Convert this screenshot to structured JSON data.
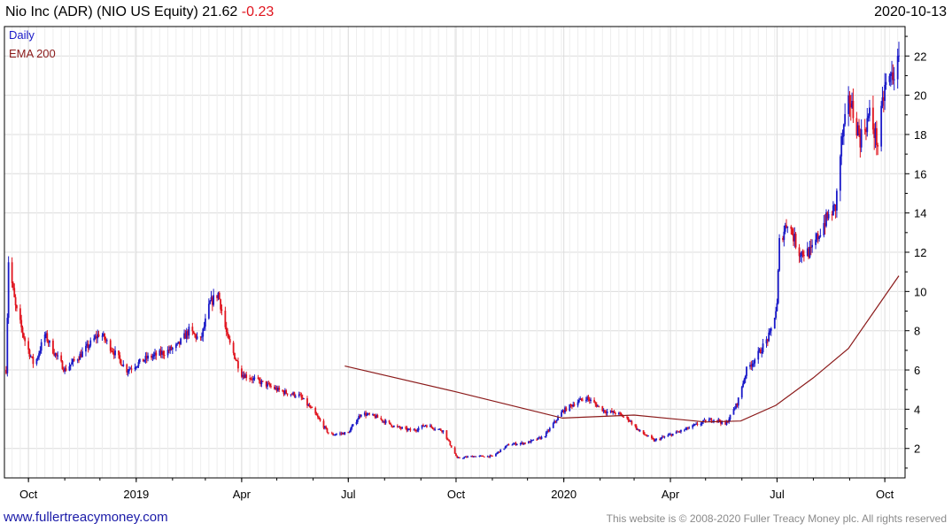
{
  "header": {
    "name": "Nio Inc (ADR)",
    "ticker": "(NIO US Equity)",
    "last": "21.62",
    "change": "-0.23",
    "date": "2020-10-13"
  },
  "footer": {
    "site": "www.fullertreacymoney.com",
    "copyright": "This website is © 2008-2020 Fuller Treacy Money plc. All rights reserved"
  },
  "colors": {
    "up": "#1a1ac8",
    "down": "#e0141e",
    "ema": "#8b1a1a",
    "grid": "#dcdcdc",
    "axis": "#000000"
  },
  "chart_data": {
    "type": "candlestick",
    "legend": [
      {
        "label": "Daily",
        "color": "#1a1ac8"
      },
      {
        "label": "EMA 200",
        "color": "#8b1a1a"
      }
    ],
    "x_range": [
      "2018-09-12",
      "2020-10-13"
    ],
    "ylim": [
      0.5,
      23.5
    ],
    "y_ticks": [
      2,
      4,
      6,
      8,
      10,
      12,
      14,
      16,
      18,
      20,
      22
    ],
    "x_ticks": [
      {
        "date": "2018-10-01",
        "label": "Oct"
      },
      {
        "date": "2019-01-01",
        "label": "2019"
      },
      {
        "date": "2019-04-01",
        "label": "Apr"
      },
      {
        "date": "2019-07-01",
        "label": "Jul"
      },
      {
        "date": "2019-10-01",
        "label": "Oct"
      },
      {
        "date": "2020-01-01",
        "label": "2020"
      },
      {
        "date": "2020-04-01",
        "label": "Apr"
      },
      {
        "date": "2020-07-01",
        "label": "Jul"
      },
      {
        "date": "2020-10-01",
        "label": "Oct"
      }
    ],
    "price_path": [
      [
        "2018-09-12",
        6.0
      ],
      [
        "2018-09-14",
        11.6
      ],
      [
        "2018-09-20",
        9.2
      ],
      [
        "2018-09-28",
        7.5
      ],
      [
        "2018-10-06",
        6.2
      ],
      [
        "2018-10-15",
        7.8
      ],
      [
        "2018-10-22",
        7.0
      ],
      [
        "2018-11-01",
        6.0
      ],
      [
        "2018-11-15",
        6.8
      ],
      [
        "2018-12-01",
        7.9
      ],
      [
        "2018-12-12",
        7.0
      ],
      [
        "2018-12-24",
        6.0
      ],
      [
        "2019-01-10",
        6.6
      ],
      [
        "2019-01-25",
        6.9
      ],
      [
        "2019-02-05",
        7.2
      ],
      [
        "2019-02-15",
        8.0
      ],
      [
        "2019-02-25",
        7.5
      ],
      [
        "2019-03-05",
        9.4
      ],
      [
        "2019-03-12",
        9.9
      ],
      [
        "2019-03-20",
        7.6
      ],
      [
        "2019-04-01",
        5.8
      ],
      [
        "2019-04-20",
        5.3
      ],
      [
        "2019-05-05",
        4.9
      ],
      [
        "2019-05-20",
        4.7
      ],
      [
        "2019-06-01",
        3.9
      ],
      [
        "2019-06-15",
        2.7
      ],
      [
        "2019-07-01",
        2.8
      ],
      [
        "2019-07-12",
        3.8
      ],
      [
        "2019-07-25",
        3.6
      ],
      [
        "2019-08-10",
        3.1
      ],
      [
        "2019-08-25",
        2.9
      ],
      [
        "2019-09-05",
        3.2
      ],
      [
        "2019-09-20",
        2.9
      ],
      [
        "2019-10-02",
        1.5
      ],
      [
        "2019-10-15",
        1.6
      ],
      [
        "2019-11-01",
        1.6
      ],
      [
        "2019-11-15",
        2.2
      ],
      [
        "2019-12-01",
        2.3
      ],
      [
        "2019-12-15",
        2.6
      ],
      [
        "2019-12-31",
        3.9
      ],
      [
        "2020-01-10",
        4.3
      ],
      [
        "2020-01-20",
        4.6
      ],
      [
        "2020-02-05",
        3.9
      ],
      [
        "2020-02-15",
        3.8
      ],
      [
        "2020-02-25",
        3.5
      ],
      [
        "2020-03-05",
        2.9
      ],
      [
        "2020-03-18",
        2.4
      ],
      [
        "2020-04-01",
        2.7
      ],
      [
        "2020-04-15",
        3.0
      ],
      [
        "2020-05-01",
        3.4
      ],
      [
        "2020-05-10",
        3.5
      ],
      [
        "2020-05-18",
        3.2
      ],
      [
        "2020-05-28",
        4.3
      ],
      [
        "2020-06-05",
        6.0
      ],
      [
        "2020-06-15",
        6.8
      ],
      [
        "2020-06-25",
        7.8
      ],
      [
        "2020-07-01",
        9.3
      ],
      [
        "2020-07-03",
        12.5
      ],
      [
        "2020-07-10",
        13.6
      ],
      [
        "2020-07-20",
        12.0
      ],
      [
        "2020-07-30",
        12.0
      ],
      [
        "2020-08-10",
        13.5
      ],
      [
        "2020-08-20",
        14.3
      ],
      [
        "2020-08-25",
        17.6
      ],
      [
        "2020-09-01",
        19.8
      ],
      [
        "2020-09-10",
        17.8
      ],
      [
        "2020-09-18",
        19.0
      ],
      [
        "2020-09-25",
        17.5
      ],
      [
        "2020-10-01",
        20.4
      ],
      [
        "2020-10-13",
        21.6
      ]
    ],
    "ema200": [
      [
        "2019-06-28",
        6.2
      ],
      [
        "2019-09-30",
        4.9
      ],
      [
        "2019-12-31",
        3.55
      ],
      [
        "2020-03-01",
        3.7
      ],
      [
        "2020-05-01",
        3.35
      ],
      [
        "2020-05-31",
        3.4
      ],
      [
        "2020-06-30",
        4.2
      ],
      [
        "2020-08-01",
        5.6
      ],
      [
        "2020-08-31",
        7.1
      ],
      [
        "2020-10-13",
        10.8
      ]
    ]
  }
}
